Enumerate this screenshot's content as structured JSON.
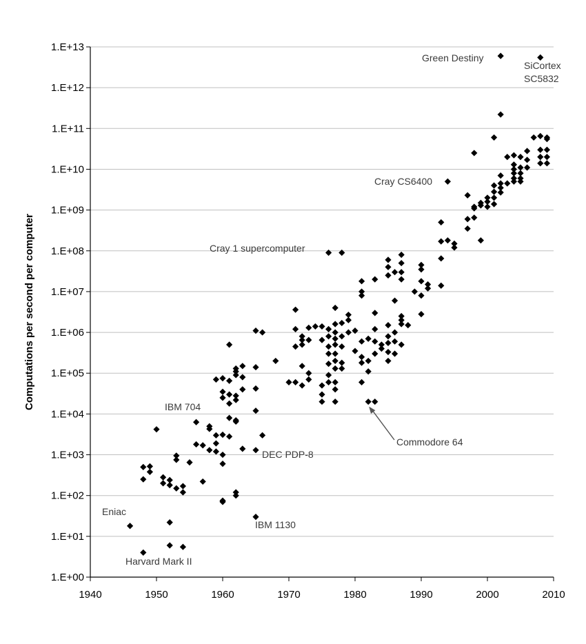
{
  "chart_data": {
    "type": "scatter",
    "title": "",
    "xlabel": "",
    "ylabel": "Computations per second per computer",
    "xlim": [
      1940,
      2010
    ],
    "ylim": [
      1,
      10000000000000.0
    ],
    "yscale": "log",
    "grid": "horizontal",
    "x_ticks": [
      "1940",
      "1950",
      "1960",
      "1970",
      "1980",
      "1990",
      "2000",
      "2010"
    ],
    "y_ticks": [
      "1.E+00",
      "1.E+01",
      "1.E+02",
      "1.E+03",
      "1.E+04",
      "1.E+05",
      "1.E+06",
      "1.E+07",
      "1.E+08",
      "1.E+09",
      "1.E+10",
      "1.E+11",
      "1.E+12",
      "1.E+13"
    ],
    "marker_color": "#000000",
    "grid_color": "#bfbfbf",
    "annotations": [
      {
        "text": "Green Destiny",
        "x": 2002,
        "y": 6000000000000.0
      },
      {
        "text": "SiCortex",
        "x": 2008,
        "y": 5500000000000.0
      },
      {
        "text": "SC5832",
        "x": 2008,
        "y": 5500000000000.0
      },
      {
        "text": "Cray CS6400",
        "x": 1994,
        "y": 5000000000.0
      },
      {
        "text": "Cray 1 supercomputer",
        "x": 1976,
        "y": 90000000.0
      },
      {
        "text": "IBM 704",
        "x": 1956,
        "y": 6000.0
      },
      {
        "text": "Commodore 64",
        "x": 1982,
        "y": 20000.0
      },
      {
        "text": "DEC PDP-8",
        "x": 1965,
        "y": 1300.0
      },
      {
        "text": "Eniac",
        "x": 1946,
        "y": 18
      },
      {
        "text": "IBM 1130",
        "x": 1965,
        "y": 30
      },
      {
        "text": "Harvard Mark II",
        "x": 1948,
        "y": 4
      }
    ],
    "points": [
      [
        1946,
        18
      ],
      [
        1948,
        4
      ],
      [
        1948,
        250
      ],
      [
        1948,
        500
      ],
      [
        1949,
        380
      ],
      [
        1949,
        520
      ],
      [
        1950,
        4200
      ],
      [
        1951,
        280
      ],
      [
        1951,
        200
      ],
      [
        1952,
        240
      ],
      [
        1952,
        180
      ],
      [
        1952,
        22
      ],
      [
        1952,
        6
      ],
      [
        1953,
        150
      ],
      [
        1953,
        750
      ],
      [
        1953,
        950
      ],
      [
        1954,
        120
      ],
      [
        1954,
        170
      ],
      [
        1954,
        5.5
      ],
      [
        1955,
        650
      ],
      [
        1956,
        6300
      ],
      [
        1956,
        1800
      ],
      [
        1957,
        1700
      ],
      [
        1957,
        220
      ],
      [
        1958,
        4300
      ],
      [
        1958,
        5000
      ],
      [
        1958,
        1300
      ],
      [
        1959,
        3000
      ],
      [
        1959,
        1900
      ],
      [
        1959,
        1200
      ],
      [
        1959,
        70000
      ],
      [
        1960,
        3100
      ],
      [
        1960,
        1000
      ],
      [
        1960,
        600
      ],
      [
        1960,
        75
      ],
      [
        1960,
        70
      ],
      [
        1960,
        75000
      ],
      [
        1960,
        35000
      ],
      [
        1960,
        25000
      ],
      [
        1961,
        500000
      ],
      [
        1961,
        65000
      ],
      [
        1961,
        30000
      ],
      [
        1961,
        18000
      ],
      [
        1961,
        8000
      ],
      [
        1961,
        2800
      ],
      [
        1962,
        110000
      ],
      [
        1962,
        130000
      ],
      [
        1962,
        90000
      ],
      [
        1962,
        28000
      ],
      [
        1962,
        22000
      ],
      [
        1962,
        7000
      ],
      [
        1962,
        6500
      ],
      [
        1962,
        120
      ],
      [
        1962,
        100
      ],
      [
        1963,
        150000
      ],
      [
        1963,
        80000
      ],
      [
        1963,
        40000
      ],
      [
        1963,
        1400
      ],
      [
        1965,
        1100000
      ],
      [
        1965,
        140000
      ],
      [
        1965,
        42000
      ],
      [
        1965,
        12000
      ],
      [
        1965,
        1300
      ],
      [
        1965,
        30
      ],
      [
        1966,
        1000000
      ],
      [
        1966,
        3000
      ],
      [
        1968,
        200000
      ],
      [
        1970,
        60000
      ],
      [
        1971,
        3600000
      ],
      [
        1971,
        1200000
      ],
      [
        1971,
        450000
      ],
      [
        1971,
        60000
      ],
      [
        1972,
        800000
      ],
      [
        1972,
        650000
      ],
      [
        1972,
        500000
      ],
      [
        1972,
        150000
      ],
      [
        1972,
        50000
      ],
      [
        1973,
        1300000
      ],
      [
        1973,
        650000
      ],
      [
        1973,
        100000
      ],
      [
        1973,
        70000
      ],
      [
        1974,
        1400000
      ],
      [
        1975,
        1400000
      ],
      [
        1975,
        650000
      ],
      [
        1975,
        50000
      ],
      [
        1975,
        30000
      ],
      [
        1975,
        20000
      ],
      [
        1976,
        90000000
      ],
      [
        1976,
        1200000
      ],
      [
        1976,
        800000
      ],
      [
        1976,
        450000
      ],
      [
        1976,
        300000
      ],
      [
        1976,
        170000
      ],
      [
        1976,
        90000
      ],
      [
        1976,
        60000
      ],
      [
        1977,
        4000000
      ],
      [
        1977,
        1600000
      ],
      [
        1977,
        1000000
      ],
      [
        1977,
        700000
      ],
      [
        1977,
        500000
      ],
      [
        1977,
        300000
      ],
      [
        1977,
        200000
      ],
      [
        1977,
        130000
      ],
      [
        1977,
        60000
      ],
      [
        1977,
        40000
      ],
      [
        1977,
        20000
      ],
      [
        1978,
        90000000
      ],
      [
        1978,
        1700000
      ],
      [
        1978,
        800000
      ],
      [
        1978,
        450000
      ],
      [
        1978,
        180000
      ],
      [
        1978,
        130000
      ],
      [
        1979,
        2700000
      ],
      [
        1979,
        2000000
      ],
      [
        1979,
        1000000
      ],
      [
        1980,
        1100000
      ],
      [
        1980,
        350000
      ],
      [
        1981,
        18000000
      ],
      [
        1981,
        10000000
      ],
      [
        1981,
        8000000
      ],
      [
        1981,
        600000
      ],
      [
        1981,
        250000
      ],
      [
        1981,
        180000
      ],
      [
        1981,
        60000
      ],
      [
        1982,
        700000
      ],
      [
        1982,
        200000
      ],
      [
        1982,
        110000
      ],
      [
        1982,
        20000
      ],
      [
        1983,
        20000000
      ],
      [
        1983,
        3000000
      ],
      [
        1983,
        1200000
      ],
      [
        1983,
        600000
      ],
      [
        1983,
        300000
      ],
      [
        1983,
        20000
      ],
      [
        1984,
        500000
      ],
      [
        1984,
        400000
      ],
      [
        1985,
        60000000
      ],
      [
        1985,
        40000000
      ],
      [
        1985,
        25000000
      ],
      [
        1985,
        1500000
      ],
      [
        1985,
        800000
      ],
      [
        1985,
        550000
      ],
      [
        1985,
        330000
      ],
      [
        1985,
        200000
      ],
      [
        1986,
        6000000
      ],
      [
        1986,
        30000000
      ],
      [
        1986,
        1000000
      ],
      [
        1986,
        600000
      ],
      [
        1986,
        300000
      ],
      [
        1987,
        80000000
      ],
      [
        1987,
        50000000
      ],
      [
        1987,
        30000000
      ],
      [
        1987,
        20000000
      ],
      [
        1987,
        2500000
      ],
      [
        1987,
        2000000
      ],
      [
        1987,
        1600000
      ],
      [
        1987,
        500000
      ],
      [
        1988,
        1500000
      ],
      [
        1989,
        10000000
      ],
      [
        1990,
        45000000
      ],
      [
        1990,
        35000000
      ],
      [
        1990,
        18000000
      ],
      [
        1990,
        8000000
      ],
      [
        1990,
        2800000
      ],
      [
        1991,
        15000000
      ],
      [
        1991,
        12000000
      ],
      [
        1993,
        500000000
      ],
      [
        1993,
        170000000
      ],
      [
        1993,
        65000000
      ],
      [
        1993,
        14000000
      ],
      [
        1994,
        5000000000
      ],
      [
        1994,
        180000000
      ],
      [
        1995,
        150000000
      ],
      [
        1995,
        120000000
      ],
      [
        1997,
        2300000000
      ],
      [
        1997,
        600000000
      ],
      [
        1997,
        350000000
      ],
      [
        1998,
        25000000000
      ],
      [
        1998,
        1200000000
      ],
      [
        1998,
        1100000000
      ],
      [
        1998,
        650000000
      ],
      [
        1999,
        1500000000
      ],
      [
        1999,
        1300000000
      ],
      [
        1999,
        180000000
      ],
      [
        2000,
        2000000000
      ],
      [
        2000,
        1600000000
      ],
      [
        2000,
        1200000000
      ],
      [
        2001,
        60000000000
      ],
      [
        2001,
        4000000000
      ],
      [
        2001,
        2800000000
      ],
      [
        2001,
        2000000000
      ],
      [
        2001,
        1400000000
      ],
      [
        2002,
        6000000000000
      ],
      [
        2002,
        220000000000
      ],
      [
        2002,
        7000000000
      ],
      [
        2002,
        4500000000
      ],
      [
        2002,
        3500000000
      ],
      [
        2002,
        2700000000
      ],
      [
        2003,
        20000000000
      ],
      [
        2003,
        4500000000
      ],
      [
        2004,
        22000000000
      ],
      [
        2004,
        13000000000
      ],
      [
        2004,
        10000000000
      ],
      [
        2004,
        8000000000
      ],
      [
        2004,
        6000000000
      ],
      [
        2004,
        5000000000
      ],
      [
        2005,
        20000000000
      ],
      [
        2005,
        11000000000
      ],
      [
        2005,
        8000000000
      ],
      [
        2005,
        6000000000
      ],
      [
        2005,
        5000000000
      ],
      [
        2006,
        28000000000
      ],
      [
        2006,
        17000000000
      ],
      [
        2006,
        11000000000
      ],
      [
        2007,
        60000000000
      ],
      [
        2008,
        5500000000000
      ],
      [
        2008,
        65000000000
      ],
      [
        2008,
        30000000000
      ],
      [
        2008,
        20000000000
      ],
      [
        2008,
        14000000000
      ],
      [
        2009,
        60000000000
      ],
      [
        2009,
        55000000000
      ],
      [
        2009,
        30000000000
      ],
      [
        2009,
        20000000000
      ],
      [
        2009,
        14000000000
      ]
    ]
  }
}
